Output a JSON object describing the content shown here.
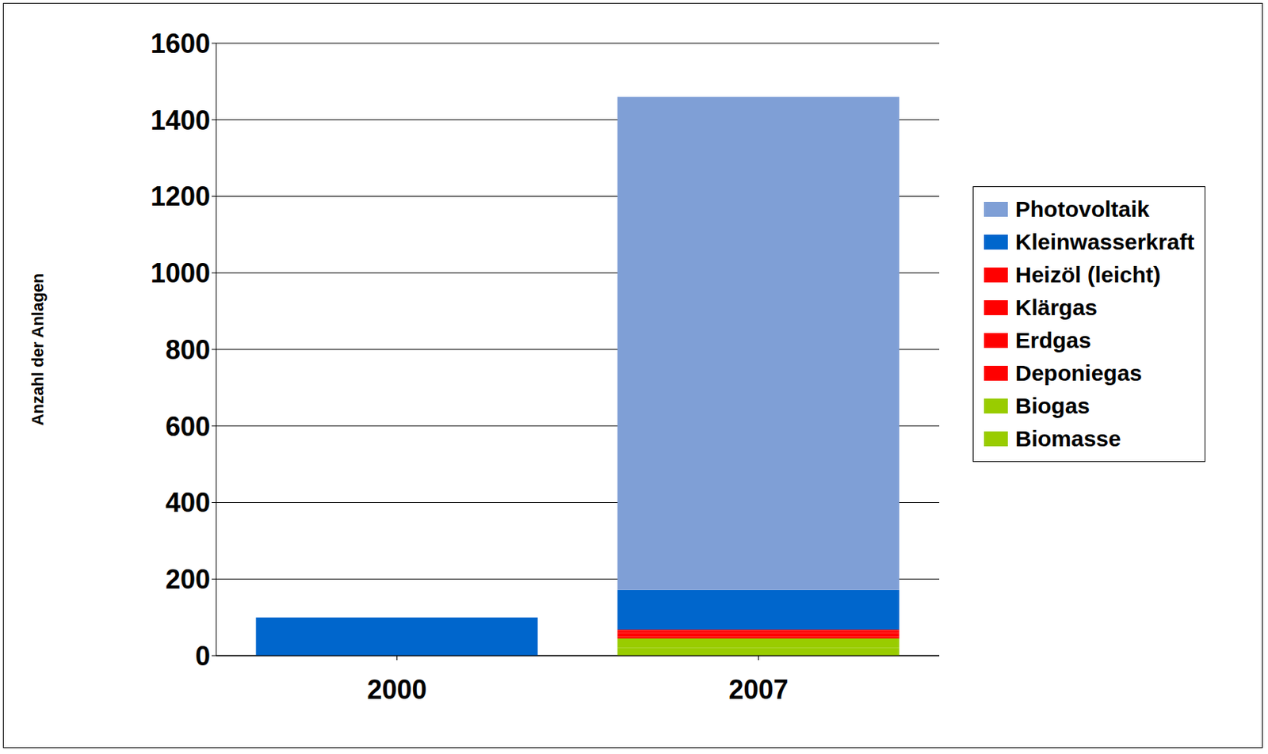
{
  "chart_data": {
    "type": "bar",
    "y_label": "Anzahl der Anlagen",
    "categories": [
      "2000",
      "2007"
    ],
    "series": [
      {
        "name": "Photovoltaik",
        "color": "#7f9fd6",
        "values": [
          0,
          1288
        ]
      },
      {
        "name": "Kleinwasserkraft",
        "color": "#0066cc",
        "values": [
          100,
          104
        ]
      },
      {
        "name": "Heizöl (leicht)",
        "color": "#ff0000",
        "values": [
          0,
          3
        ]
      },
      {
        "name": "Klärgas",
        "color": "#ff0000",
        "values": [
          0,
          5
        ]
      },
      {
        "name": "Erdgas",
        "color": "#ff0000",
        "values": [
          0,
          10
        ]
      },
      {
        "name": "Deponiegas",
        "color": "#ff0000",
        "values": [
          0,
          5
        ]
      },
      {
        "name": "Biogas",
        "color": "#99cc00",
        "values": [
          0,
          25
        ]
      },
      {
        "name": "Biomasse",
        "color": "#99cc00",
        "values": [
          0,
          20
        ]
      }
    ],
    "ylim": [
      0,
      1600
    ],
    "yticks": [
      0,
      200,
      400,
      600,
      800,
      1000,
      1200,
      1400,
      1600
    ],
    "stacked": true,
    "grid": true,
    "legend": "right"
  }
}
